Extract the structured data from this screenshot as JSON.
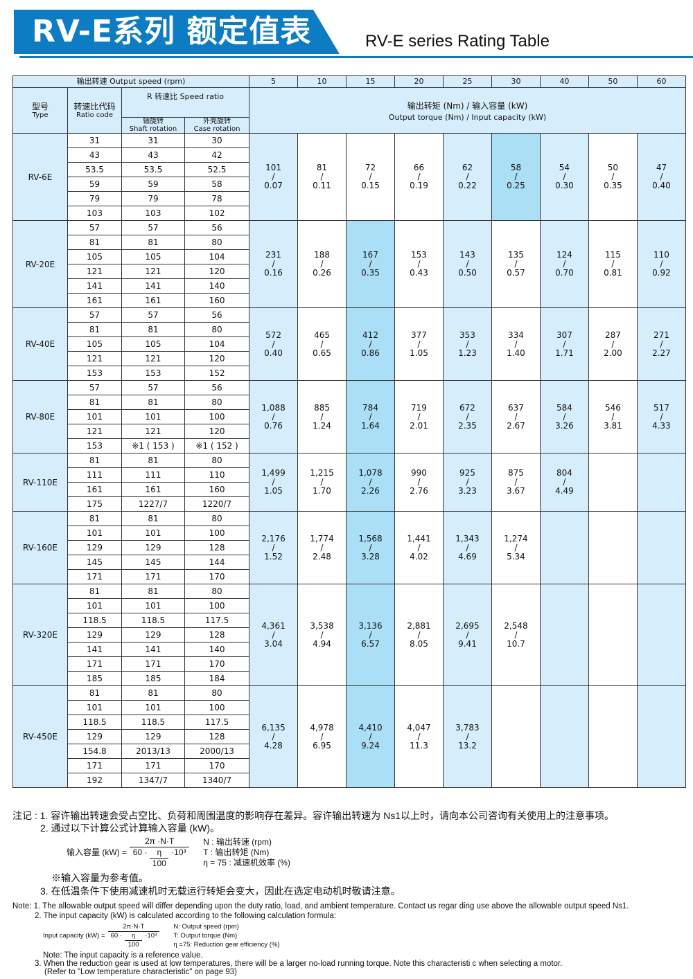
{
  "header": {
    "title_cn": "RV-E系列 额定值表",
    "title_en": "RV-E series Rating Table",
    "accent": "#0e7cc3"
  },
  "table": {
    "output_speed_label": "输出转速 Output speed (rpm)",
    "speeds": [
      "5",
      "10",
      "15",
      "20",
      "25",
      "30",
      "40",
      "50",
      "60"
    ],
    "type_label_cn": "型号",
    "type_label_en": "Type",
    "code_label_cn": "转速比代码",
    "code_label_en": "Ratio code",
    "ratio_label": "R 转速比 Speed ratio",
    "shaft_cn": "轴旋转",
    "shaft_en": "Shaft rotation",
    "case_cn": "外壳旋转",
    "case_en": "Case rotation",
    "value_label_cn": "输出转矩 (Nm) / 输入容量 (kW)",
    "value_label_en": "Output torque (Nm) / Input capacity (kW)",
    "colors": {
      "light": "#d6eefb",
      "highlight": "#abdff6"
    },
    "groups": [
      {
        "type": "RV-6E",
        "highlight": "30",
        "rows": [
          [
            "31",
            "31",
            "30"
          ],
          [
            "43",
            "43",
            "42"
          ],
          [
            "53.5",
            "53.5",
            "52.5"
          ],
          [
            "59",
            "59",
            "58"
          ],
          [
            "79",
            "79",
            "78"
          ],
          [
            "103",
            "103",
            "102"
          ]
        ],
        "values": [
          [
            "101",
            "0.07"
          ],
          [
            "81",
            "0.11"
          ],
          [
            "72",
            "0.15"
          ],
          [
            "66",
            "0.19"
          ],
          [
            "62",
            "0.22"
          ],
          [
            "58",
            "0.25"
          ],
          [
            "54",
            "0.30"
          ],
          [
            "50",
            "0.35"
          ],
          [
            "47",
            "0.40"
          ]
        ]
      },
      {
        "type": "RV-20E",
        "highlight": "15",
        "rows": [
          [
            "57",
            "57",
            "56"
          ],
          [
            "81",
            "81",
            "80"
          ],
          [
            "105",
            "105",
            "104"
          ],
          [
            "121",
            "121",
            "120"
          ],
          [
            "141",
            "141",
            "140"
          ],
          [
            "161",
            "161",
            "160"
          ]
        ],
        "values": [
          [
            "231",
            "0.16"
          ],
          [
            "188",
            "0.26"
          ],
          [
            "167",
            "0.35"
          ],
          [
            "153",
            "0.43"
          ],
          [
            "143",
            "0.50"
          ],
          [
            "135",
            "0.57"
          ],
          [
            "124",
            "0.70"
          ],
          [
            "115",
            "0.81"
          ],
          [
            "110",
            "0.92"
          ]
        ]
      },
      {
        "type": "RV-40E",
        "highlight": "15",
        "rows": [
          [
            "57",
            "57",
            "56"
          ],
          [
            "81",
            "81",
            "80"
          ],
          [
            "105",
            "105",
            "104"
          ],
          [
            "121",
            "121",
            "120"
          ],
          [
            "153",
            "153",
            "152"
          ]
        ],
        "values": [
          [
            "572",
            "0.40"
          ],
          [
            "465",
            "0.65"
          ],
          [
            "412",
            "0.86"
          ],
          [
            "377",
            "1.05"
          ],
          [
            "353",
            "1.23"
          ],
          [
            "334",
            "1.40"
          ],
          [
            "307",
            "1.71"
          ],
          [
            "287",
            "2.00"
          ],
          [
            "271",
            "2.27"
          ]
        ]
      },
      {
        "type": "RV-80E",
        "highlight": "15",
        "rows": [
          [
            "57",
            "57",
            "56"
          ],
          [
            "81",
            "81",
            "80"
          ],
          [
            "101",
            "101",
            "100"
          ],
          [
            "121",
            "121",
            "120"
          ],
          [
            "153",
            "※1 ( 153 )",
            "※1 ( 152 )"
          ]
        ],
        "values": [
          [
            "1,088",
            "0.76"
          ],
          [
            "885",
            "1.24"
          ],
          [
            "784",
            "1.64"
          ],
          [
            "719",
            "2.01"
          ],
          [
            "672",
            "2.35"
          ],
          [
            "637",
            "2.67"
          ],
          [
            "584",
            "3.26"
          ],
          [
            "546",
            "3.81"
          ],
          [
            "517",
            "4.33"
          ]
        ]
      },
      {
        "type": "RV-110E",
        "highlight": "15",
        "rows": [
          [
            "81",
            "81",
            "80"
          ],
          [
            "111",
            "111",
            "110"
          ],
          [
            "161",
            "161",
            "160"
          ],
          [
            "175",
            "1227/7",
            "1220/7"
          ]
        ],
        "values": [
          [
            "1,499",
            "1.05"
          ],
          [
            "1,215",
            "1.70"
          ],
          [
            "1,078",
            "2.26"
          ],
          [
            "990",
            "2.76"
          ],
          [
            "925",
            "3.23"
          ],
          [
            "875",
            "3.67"
          ],
          [
            "804",
            "4.49"
          ],
          null,
          null
        ]
      },
      {
        "type": "RV-160E",
        "highlight": "15",
        "rows": [
          [
            "81",
            "81",
            "80"
          ],
          [
            "101",
            "101",
            "100"
          ],
          [
            "129",
            "129",
            "128"
          ],
          [
            "145",
            "145",
            "144"
          ],
          [
            "171",
            "171",
            "170"
          ]
        ],
        "values": [
          [
            "2,176",
            "1.52"
          ],
          [
            "1,774",
            "2.48"
          ],
          [
            "1,568",
            "3.28"
          ],
          [
            "1,441",
            "4.02"
          ],
          [
            "1,343",
            "4.69"
          ],
          [
            "1,274",
            "5.34"
          ],
          null,
          null,
          null
        ]
      },
      {
        "type": "RV-320E",
        "highlight": "15",
        "rows": [
          [
            "81",
            "81",
            "80"
          ],
          [
            "101",
            "101",
            "100"
          ],
          [
            "118.5",
            "118.5",
            "117.5"
          ],
          [
            "129",
            "129",
            "128"
          ],
          [
            "141",
            "141",
            "140"
          ],
          [
            "171",
            "171",
            "170"
          ],
          [
            "185",
            "185",
            "184"
          ]
        ],
        "values": [
          [
            "4,361",
            "3.04"
          ],
          [
            "3,538",
            "4.94"
          ],
          [
            "3,136",
            "6.57"
          ],
          [
            "2,881",
            "8.05"
          ],
          [
            "2,695",
            "9.41"
          ],
          [
            "2,548",
            "10.7"
          ],
          null,
          null,
          null
        ]
      },
      {
        "type": "RV-450E",
        "highlight": "15",
        "rows": [
          [
            "81",
            "81",
            "80"
          ],
          [
            "101",
            "101",
            "100"
          ],
          [
            "118.5",
            "118.5",
            "117.5"
          ],
          [
            "129",
            "129",
            "128"
          ],
          [
            "154.8",
            "2013/13",
            "2000/13"
          ],
          [
            "171",
            "171",
            "170"
          ],
          [
            "192",
            "1347/7",
            "1340/7"
          ]
        ],
        "values": [
          [
            "6,135",
            "4.28"
          ],
          [
            "4,978",
            "6.95"
          ],
          [
            "4,410",
            "9.24"
          ],
          [
            "4,047",
            "11.3"
          ],
          [
            "3,783",
            "13.2"
          ],
          null,
          null,
          null,
          null
        ]
      }
    ]
  },
  "notes_cn": {
    "n1": "注记 : 1. 容许输出转速会受占空比、负荷和周围温度的影响存在差异。容许输出转速为 Ns1以上时，请向本公司咨询有关使用上的注意事项。",
    "n2": "2. 通过以下计算公式计算输入容量 (kW)。",
    "f_lhs": "输入容量 (kW) =",
    "f_num": "2π ·N·T",
    "f_den_a": "60 ·",
    "f_eta": "η",
    "f_100": "100",
    "f_den_b": "·10³",
    "v1": "N : 输出转速 (rpm)",
    "v2": "T : 输出转矩 (Nm)",
    "v3": "η  = 75 : 减速机效率 (%)",
    "ref": "※输入容量为参考值。",
    "n3": "3. 在低温条件下使用减速机时无载运行转矩会变大，因此在选定电动机时敬请注意。"
  },
  "notes_en": {
    "n1": "Note: 1. The allowable output speed will differ depending upon the duty ratio, load, and ambient temperature. Contact us regar ding use above the allowable output speed Ns1.",
    "n2": "2. The input capacity (kW) is calculated according to the following calculation formula:",
    "f_lhs": "Input capacity (kW) =",
    "f_num": "2π·N·T",
    "f_den_a": "60 ·",
    "f_eta": "η",
    "f_100": "100",
    "f_den_b": "·10³",
    "v1": "N: Output speed (rpm)",
    "v2": "T: Output torque (Nm)",
    "v3": "η =75: Reduction gear efficiency (%)",
    "ref": "Note: The input capacity is a reference value.",
    "n3": "3. When the reduction gear is used at low temperatures, there will be a larger no-load running torque. Note this characteristi c when selecting a motor.",
    "n3b": "(Refer to \"Low temperature characteristic\" on page 93)"
  }
}
